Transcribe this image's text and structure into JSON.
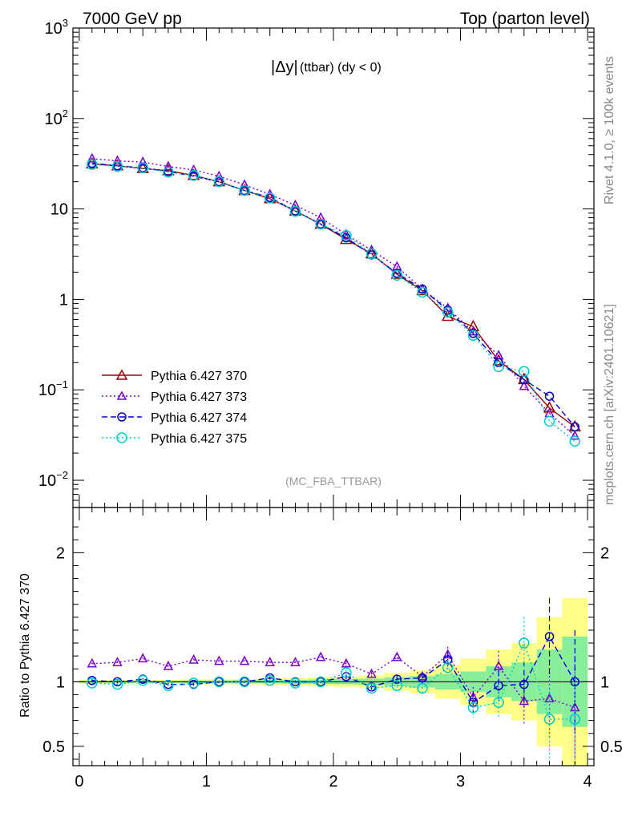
{
  "header": {
    "left": "7000 GeV pp",
    "right": "Top (parton level)"
  },
  "side_labels": {
    "rivet": "Rivet 4.1.0, ≥ 100k events",
    "mcplots": "mcplots.cern.ch [arXiv:2401.10621]"
  },
  "chart_data": [
    {
      "type": "line",
      "title": "|Δy| (ttbar) (dy < 0)",
      "title_main": "|Δy|",
      "title_sub": "(ttbar) (dy < 0)",
      "analysis_label": "(MC_FBA_TTBAR)",
      "yscale": "log",
      "ylim": [
        0.005,
        1000
      ],
      "xlim": [
        -0.05,
        4.05
      ],
      "y_tick_labels": [
        "10^-2",
        "10^-1",
        "1",
        "10",
        "10^2",
        "10^3"
      ],
      "legend_position": "bottom-left",
      "x": [
        0.1,
        0.3,
        0.5,
        0.7,
        0.9,
        1.1,
        1.3,
        1.5,
        1.7,
        1.9,
        2.1,
        2.3,
        2.5,
        2.7,
        2.9,
        3.1,
        3.3,
        3.5,
        3.7,
        3.9
      ],
      "series": [
        {
          "name": "Pythia 6.427 370",
          "color": "#990000",
          "marker": "triangle",
          "dash": "solid",
          "values": [
            31.5,
            30,
            28,
            26.5,
            23.5,
            20,
            16,
            13,
            9.5,
            6.8,
            4.6,
            3.2,
            1.9,
            1.25,
            0.65,
            0.5,
            0.21,
            0.13,
            0.063,
            0.039
          ]
        },
        {
          "name": "Pythia 6.427 373",
          "color": "#7a00cc",
          "marker": "triangle-small",
          "dash": "dot",
          "values": [
            36,
            34,
            33,
            29.5,
            27,
            23,
            18.5,
            14.5,
            11,
            8,
            5.2,
            3.5,
            2.3,
            1.3,
            0.8,
            0.44,
            0.24,
            0.11,
            0.055,
            0.031
          ]
        },
        {
          "name": "Pythia 6.427 374",
          "color": "#0000cc",
          "marker": "circle",
          "dash": "dash",
          "values": [
            32,
            30,
            28.5,
            26,
            23,
            20,
            16,
            13.4,
            9.5,
            6.8,
            4.8,
            3.1,
            1.95,
            1.3,
            0.76,
            0.42,
            0.2,
            0.13,
            0.085,
            0.039
          ]
        },
        {
          "name": "Pythia 6.427 375",
          "color": "#00cccc",
          "marker": "circle-large",
          "dash": "dot",
          "values": [
            31,
            29.5,
            28.5,
            25.5,
            23.5,
            20,
            16,
            13.2,
            9.4,
            6.8,
            5.1,
            3.2,
            1.85,
            1.2,
            0.72,
            0.4,
            0.18,
            0.16,
            0.045,
            0.027
          ]
        }
      ]
    },
    {
      "type": "line",
      "ylabel": "Ratio to Pythia 6.427 370",
      "ylim": [
        0.35,
        2.35
      ],
      "xlim": [
        -0.05,
        4.05
      ],
      "y_ticks": [
        0.5,
        1,
        2
      ],
      "y_tick_labels": [
        "0.5",
        "1",
        "2"
      ],
      "x_ticks": [
        0,
        1,
        2,
        3,
        4
      ],
      "x_tick_labels": [
        "0",
        "1",
        "2",
        "3",
        "4"
      ],
      "x": [
        0.1,
        0.3,
        0.5,
        0.7,
        0.9,
        1.1,
        1.3,
        1.5,
        1.7,
        1.9,
        2.1,
        2.3,
        2.5,
        2.7,
        2.9,
        3.1,
        3.3,
        3.5,
        3.7,
        3.9
      ],
      "band_yellow_halfwidth": [
        0.015,
        0.015,
        0.015,
        0.015,
        0.02,
        0.02,
        0.02,
        0.025,
        0.03,
        0.035,
        0.04,
        0.05,
        0.07,
        0.09,
        0.13,
        0.18,
        0.25,
        0.3,
        0.5,
        0.65
      ],
      "band_green_halfwidth": [
        0.008,
        0.008,
        0.008,
        0.008,
        0.01,
        0.01,
        0.012,
        0.012,
        0.015,
        0.018,
        0.02,
        0.025,
        0.035,
        0.045,
        0.06,
        0.08,
        0.12,
        0.15,
        0.25,
        0.35
      ],
      "series": [
        {
          "name": "Pythia 6.427 373",
          "color": "#7a00cc",
          "marker": "triangle-small",
          "dash": "dot",
          "values": [
            1.14,
            1.15,
            1.18,
            1.12,
            1.17,
            1.16,
            1.16,
            1.15,
            1.15,
            1.19,
            1.14,
            1.06,
            1.19,
            1.04,
            1.21,
            0.88,
            1.12,
            0.85,
            0.87,
            0.8
          ],
          "errors": [
            0.01,
            0.01,
            0.01,
            0.01,
            0.01,
            0.01,
            0.01,
            0.01,
            0.01,
            0.01,
            0.02,
            0.02,
            0.03,
            0.04,
            0.06,
            0.08,
            0.12,
            0.18,
            0.3,
            0.4
          ]
        },
        {
          "name": "Pythia 6.427 374",
          "color": "#0000cc",
          "marker": "circle",
          "dash": "dash",
          "values": [
            1.01,
            1.0,
            1.02,
            0.98,
            0.98,
            1.0,
            1.0,
            1.03,
            1.0,
            1.0,
            1.04,
            0.96,
            1.02,
            1.03,
            1.17,
            0.84,
            0.97,
            0.98,
            1.35,
            1.0
          ],
          "errors": [
            0.01,
            0.01,
            0.01,
            0.01,
            0.01,
            0.01,
            0.01,
            0.01,
            0.01,
            0.01,
            0.02,
            0.02,
            0.03,
            0.04,
            0.06,
            0.08,
            0.12,
            0.18,
            0.3,
            0.4
          ]
        },
        {
          "name": "Pythia 6.427 375",
          "color": "#00cccc",
          "marker": "circle-large",
          "dash": "dot",
          "values": [
            0.99,
            0.98,
            1.01,
            0.97,
            0.99,
            1.0,
            1.0,
            1.01,
            0.99,
            1.0,
            1.07,
            0.95,
            0.97,
            0.95,
            1.11,
            0.8,
            0.84,
            1.3,
            0.71,
            0.71
          ],
          "errors": [
            0.01,
            0.01,
            0.01,
            0.01,
            0.01,
            0.01,
            0.01,
            0.01,
            0.01,
            0.01,
            0.02,
            0.02,
            0.03,
            0.04,
            0.06,
            0.08,
            0.12,
            0.2,
            0.3,
            0.35
          ]
        }
      ]
    }
  ]
}
